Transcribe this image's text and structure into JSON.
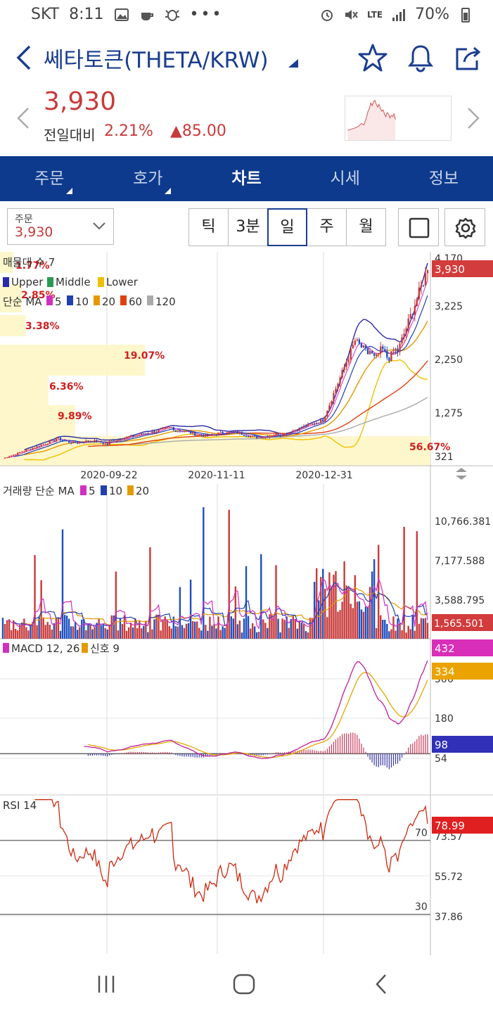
{
  "status": {
    "carrier": "SKT",
    "time": "8:11",
    "battery": "70%",
    "network": "LTE"
  },
  "header": {
    "title": "쎄타토큰(THETA/KRW)"
  },
  "quote": {
    "price": "3,930",
    "change_label": "전일대비",
    "change_pct": "2.21%",
    "change_amt": "85.00"
  },
  "tabs": [
    {
      "label": "주문",
      "has_sub": true,
      "active": false
    },
    {
      "label": "호가",
      "has_sub": true,
      "active": false
    },
    {
      "label": "차트",
      "has_sub": false,
      "active": true
    },
    {
      "label": "시세",
      "has_sub": false,
      "active": false
    },
    {
      "label": "정보",
      "has_sub": false,
      "active": false
    }
  ],
  "toolbar": {
    "order_label": "주문",
    "order_value": "3,930",
    "periods": [
      "틱",
      "3분",
      "일",
      "주",
      "월"
    ],
    "selected_period": "일"
  },
  "colors": {
    "up": "#c83a3a",
    "down": "#1f4fbf",
    "brand": "#0d3a8c",
    "bg_tab": "#0d3a8c"
  },
  "chart_data": [
    {
      "type": "line",
      "panel": "price",
      "legend_1": "매물대 수 7",
      "legend_2": [
        "Upper",
        "Middle",
        "Lower"
      ],
      "legend_3_prefix": "단순 MA",
      "legend_3": [
        "5",
        "10",
        "20",
        "60",
        "120"
      ],
      "x_ticks": [
        "2020-09-22",
        "2020-11-11",
        "2020-12-31"
      ],
      "y_ticks": [
        "4,170",
        "3,225",
        "2,250",
        "1,275",
        "321"
      ],
      "last_price": "3,930",
      "volume_profile": [
        "1.77%",
        "2.85%",
        "3.38%",
        "19.07%",
        "6.36%",
        "9.89%",
        "56.67%"
      ],
      "ylim": [
        321,
        4170
      ]
    },
    {
      "type": "bar",
      "panel": "volume",
      "legend_prefix": "거래량 단순 MA",
      "legend": [
        "5",
        "10",
        "20"
      ],
      "y_ticks": [
        "10,766.381",
        "7,177.588",
        "3,588.795"
      ],
      "last_value": "1,565.501"
    },
    {
      "type": "line",
      "panel": "macd",
      "legend_1": "MACD 12, 26",
      "legend_2": "신호 9",
      "y_ticks": [
        "306",
        "180",
        "54"
      ],
      "macd_value": "432",
      "signal_value": "334",
      "hist_value": "98"
    },
    {
      "type": "line",
      "panel": "rsi",
      "legend": "RSI 14",
      "y_ticks": [
        "73.57",
        "55.72",
        "37.86"
      ],
      "levels": [
        "70",
        "30"
      ],
      "last_value": "78.99"
    }
  ]
}
